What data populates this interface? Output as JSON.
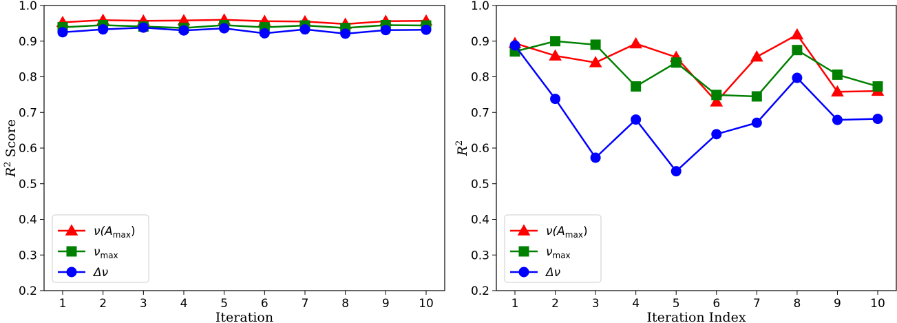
{
  "colors": {
    "red": "#ff0000",
    "green": "#008000",
    "blue": "#0000ff"
  },
  "legend": {
    "entries": [
      {
        "main": "ν(",
        "var": "A",
        "sub": "max",
        "close": ")",
        "color": "#ff0000",
        "marker": "triangle"
      },
      {
        "main": "ν",
        "var": "",
        "sub": "max",
        "close": "",
        "color": "#008000",
        "marker": "square"
      },
      {
        "main": "Δν",
        "var": "",
        "sub": "",
        "close": "",
        "color": "#0000ff",
        "marker": "circle"
      }
    ]
  },
  "chart_data": [
    {
      "type": "line",
      "title": "",
      "xlabel": "Iteration",
      "ylabel_var": "R",
      "ylabel_sup": "2",
      "ylabel_rest": " Score",
      "ylim": [
        0.2,
        1.0
      ],
      "yticks": [
        "0.2",
        "0.3",
        "0.4",
        "0.5",
        "0.6",
        "0.7",
        "0.8",
        "0.9",
        "1.0"
      ],
      "x": [
        "1",
        "2",
        "3",
        "4",
        "5",
        "6",
        "7",
        "8",
        "9",
        "10"
      ],
      "legend_position": "lower-left",
      "series": [
        {
          "name": "ν(A_max)",
          "color": "#ff0000",
          "marker": "triangle",
          "values": [
            0.953,
            0.959,
            0.957,
            0.958,
            0.96,
            0.956,
            0.955,
            0.948,
            0.956,
            0.957
          ]
        },
        {
          "name": "ν_max",
          "color": "#008000",
          "marker": "square",
          "values": [
            0.939,
            0.945,
            0.941,
            0.937,
            0.945,
            0.939,
            0.944,
            0.937,
            0.945,
            0.944
          ]
        },
        {
          "name": "Δν",
          "color": "#0000ff",
          "marker": "circle",
          "values": [
            0.925,
            0.933,
            0.938,
            0.93,
            0.936,
            0.922,
            0.933,
            0.921,
            0.931,
            0.932
          ]
        }
      ]
    },
    {
      "type": "line",
      "title": "",
      "xlabel": "Iteration Index",
      "ylabel_var": "R",
      "ylabel_sup": "2",
      "ylabel_rest": "",
      "ylim": [
        0.2,
        1.0
      ],
      "yticks": [
        "0.2",
        "0.3",
        "0.4",
        "0.5",
        "0.6",
        "0.7",
        "0.8",
        "0.9",
        "1.0"
      ],
      "x": [
        "1",
        "2",
        "3",
        "4",
        "5",
        "6",
        "7",
        "8",
        "9",
        "10"
      ],
      "legend_position": "lower-left",
      "series": [
        {
          "name": "ν(A_max)",
          "color": "#ff0000",
          "marker": "triangle",
          "values": [
            0.894,
            0.859,
            0.84,
            0.893,
            0.855,
            0.73,
            0.856,
            0.918,
            0.758,
            0.76
          ]
        },
        {
          "name": "ν_max",
          "color": "#008000",
          "marker": "square",
          "values": [
            0.871,
            0.9,
            0.89,
            0.773,
            0.84,
            0.749,
            0.745,
            0.875,
            0.806,
            0.773
          ]
        },
        {
          "name": "Δν",
          "color": "#0000ff",
          "marker": "circle",
          "values": [
            0.888,
            0.738,
            0.573,
            0.68,
            0.535,
            0.639,
            0.671,
            0.797,
            0.679,
            0.682
          ]
        }
      ]
    }
  ]
}
